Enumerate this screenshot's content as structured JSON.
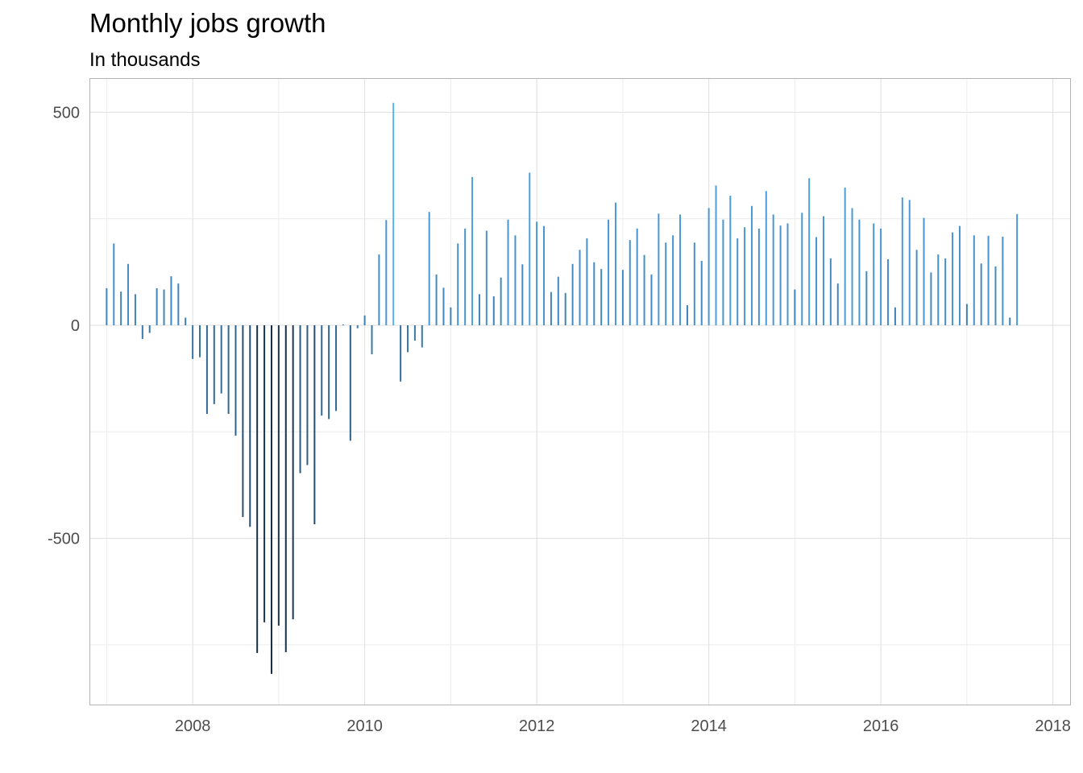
{
  "chart_data": {
    "type": "bar",
    "title": "Monthly jobs growth",
    "subtitle": "In thousands",
    "xlabel": "",
    "ylabel": "",
    "x_start": "2007-01",
    "x_interval": "monthly",
    "xlim": [
      2006.8,
      2018.2
    ],
    "ylim": [
      -890,
      580
    ],
    "x_ticks": [
      2008,
      2010,
      2012,
      2014,
      2016,
      2018
    ],
    "y_ticks": [
      -500,
      0,
      500
    ],
    "grid": true,
    "legend": "none",
    "color_scale": {
      "low": "#132b43",
      "high": "#56b1f7"
    },
    "values": [
      87,
      192,
      79,
      144,
      73,
      -32,
      -18,
      87,
      84,
      115,
      98,
      18,
      -79,
      -75,
      -208,
      -185,
      -160,
      -208,
      -259,
      -450,
      -473,
      -769,
      -697,
      -818,
      -705,
      -767,
      -690,
      -347,
      -328,
      -467,
      -212,
      -220,
      -201,
      2,
      -271,
      -7,
      23,
      -68,
      166,
      247,
      522,
      -132,
      -63,
      -36,
      -52,
      266,
      119,
      88,
      42,
      192,
      227,
      348,
      73,
      222,
      68,
      112,
      248,
      211,
      143,
      358,
      243,
      233,
      78,
      114,
      76,
      144,
      177,
      204,
      148,
      132,
      248,
      288,
      130,
      200,
      227,
      165,
      119,
      262,
      194,
      211,
      260,
      47,
      194,
      151,
      275,
      328,
      248,
      304,
      204,
      230,
      280,
      227,
      315,
      260,
      234,
      239,
      84,
      264,
      345,
      207,
      256,
      157,
      98,
      323,
      275,
      248,
      127,
      239,
      227,
      155,
      42,
      300,
      294,
      177,
      252,
      124,
      166,
      157,
      218,
      233,
      50,
      211,
      145,
      210,
      138,
      208,
      18,
      261
    ]
  }
}
